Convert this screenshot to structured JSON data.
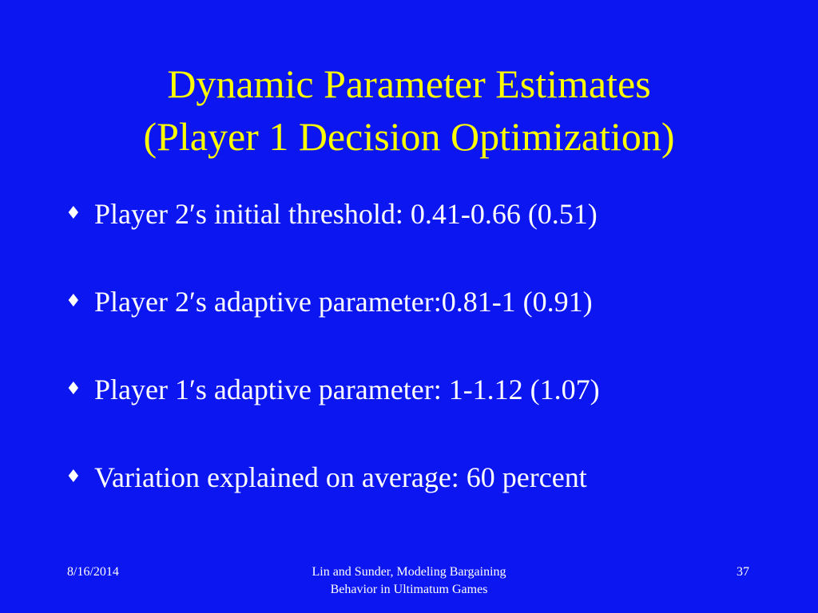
{
  "colors": {
    "background": "#0b16f0",
    "title": "#ffff00",
    "text": "#ffffff"
  },
  "slide": {
    "title_line1": "Dynamic Parameter Estimates",
    "title_line2": "(Player 1 Decision Optimization)",
    "bullet_marker": "♦",
    "bullets": [
      "Player 2′s initial threshold: 0.41-0.66 (0.51)",
      "Player 2′s adaptive parameter:0.81-1 (0.91)",
      "Player 1′s adaptive parameter: 1-1.12 (1.07)",
      "Variation explained on average: 60 percent"
    ]
  },
  "footer": {
    "date": "8/16/2014",
    "center_line1": "Lin and Sunder, Modeling Bargaining",
    "center_line2": "Behavior in Ultimatum Games",
    "page_number": "37"
  }
}
